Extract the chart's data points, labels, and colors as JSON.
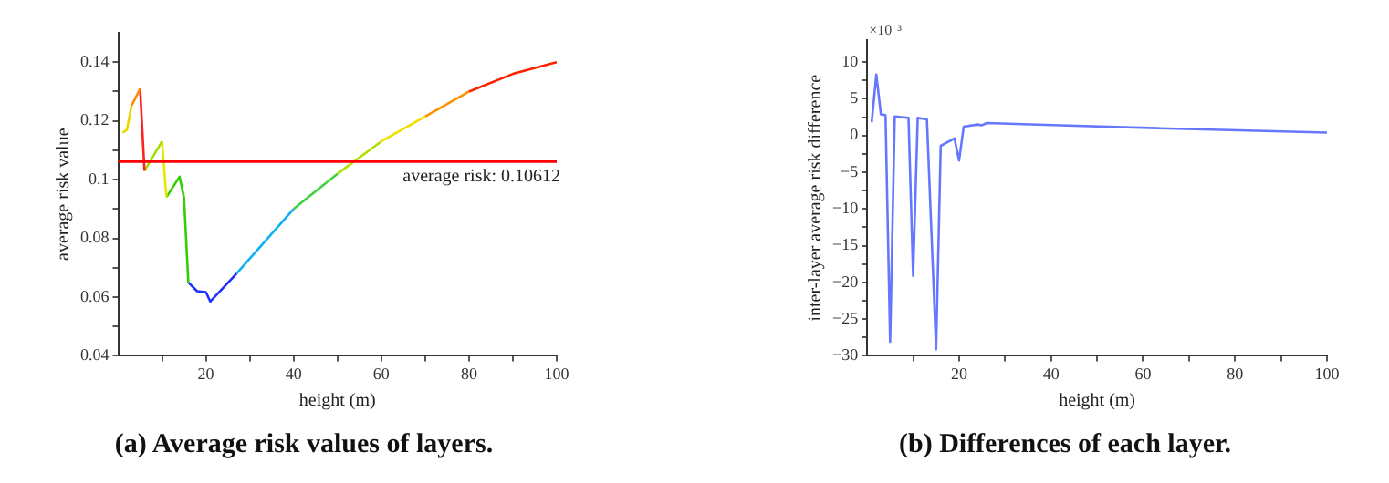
{
  "chart_data": [
    {
      "type": "line",
      "title": "(a) Average risk values of layers.",
      "xlabel": "height (m)",
      "ylabel": "average risk value",
      "series": [
        {
          "color": "#e8d800",
          "x": [
            1,
            2,
            3
          ],
          "values": [
            0.116,
            0.117,
            0.125
          ]
        },
        {
          "color": "#ff8800",
          "x": [
            3,
            5
          ],
          "values": [
            0.125,
            0.131
          ]
        },
        {
          "color": "#ff2020",
          "x": [
            5,
            6
          ],
          "values": [
            0.131,
            0.103
          ]
        },
        {
          "color": "#a0e000",
          "x": [
            6,
            10
          ],
          "values": [
            0.103,
            0.113
          ]
        },
        {
          "color": "#e8e800",
          "x": [
            10,
            11
          ],
          "values": [
            0.113,
            0.094
          ]
        },
        {
          "color": "#30d000",
          "x": [
            11,
            14,
            15,
            16
          ],
          "values": [
            0.094,
            0.101,
            0.094,
            0.065
          ]
        },
        {
          "color": "#2030ff",
          "x": [
            16,
            18,
            20,
            21,
            27
          ],
          "values": [
            0.065,
            0.062,
            0.0617,
            0.0585,
            0.068
          ]
        },
        {
          "color": "#10b0f0",
          "x": [
            27,
            40
          ],
          "values": [
            0.068,
            0.09
          ]
        },
        {
          "color": "#40d040",
          "x": [
            40,
            50
          ],
          "values": [
            0.09,
            0.102
          ]
        },
        {
          "color": "#b0e000",
          "x": [
            50,
            60
          ],
          "values": [
            0.102,
            0.113
          ]
        },
        {
          "color": "#f0e000",
          "x": [
            60,
            70
          ],
          "values": [
            0.113,
            0.1215
          ]
        },
        {
          "color": "#ff9000",
          "x": [
            70,
            80
          ],
          "values": [
            0.1215,
            0.13
          ]
        },
        {
          "color": "#ff2000",
          "x": [
            80,
            90,
            100
          ],
          "values": [
            0.13,
            0.136,
            0.14
          ]
        }
      ],
      "xlim": [
        0,
        100
      ],
      "xticks": [
        {
          "value": 10,
          "label": null
        },
        20,
        {
          "value": 30,
          "label": null
        },
        40,
        {
          "value": 50,
          "label": null
        },
        60,
        {
          "value": 70,
          "label": null
        },
        80,
        {
          "value": 90,
          "label": null
        },
        100
      ],
      "ylim": [
        0.04,
        0.15
      ],
      "yticks": [
        0.04,
        {
          "value": 0.05,
          "label": null
        },
        0.06,
        {
          "value": 0.07,
          "label": null
        },
        0.08,
        {
          "value": 0.09,
          "label": null
        },
        0.1,
        {
          "value": 0.11,
          "label": null
        },
        0.12,
        {
          "value": 0.13,
          "label": null
        },
        0.14
      ],
      "ref_lines": [
        {
          "axis": "y",
          "value": 0.10612,
          "label": "average risk: 0.10612",
          "color": "#ff0000"
        }
      ],
      "grid": false,
      "legend": false,
      "marker": "none",
      "line_style": "solid"
    },
    {
      "type": "line",
      "title": "(b) Differences of each layer.",
      "xlabel": "height (m)",
      "ylabel": "inter-layer average risk difference",
      "annotations": [
        "×10⁻³"
      ],
      "x": [
        1,
        2,
        3,
        4,
        5,
        6,
        9,
        10,
        11,
        13,
        15,
        16,
        19,
        20,
        21,
        24,
        25,
        26,
        42,
        63,
        100
      ],
      "series": [
        {
          "color": "#6677ff",
          "values": [
            1.8,
            8.3,
            2.9,
            2.8,
            -28.1,
            2.6,
            2.4,
            -19.1,
            2.4,
            2.2,
            -29.1,
            -1.4,
            -0.4,
            -3.4,
            1.2,
            1.5,
            1.4,
            1.7,
            1.4,
            1.0,
            0.4
          ]
        }
      ],
      "xlim": [
        0,
        100
      ],
      "xticks": [
        {
          "value": 10,
          "label": null
        },
        20,
        {
          "value": 30,
          "label": null
        },
        40,
        {
          "value": 50,
          "label": null
        },
        60,
        {
          "value": 70,
          "label": null
        },
        80,
        {
          "value": 90,
          "label": null
        },
        100
      ],
      "ylim": [
        -30,
        13
      ],
      "yticks": [
        -30,
        {
          "value": -27.5,
          "label": null
        },
        -25,
        {
          "value": -22.5,
          "label": null
        },
        -20,
        {
          "value": -17.5,
          "label": null
        },
        -15,
        {
          "value": -12.5,
          "label": null
        },
        -10,
        {
          "value": -7.5,
          "label": null
        },
        -5,
        {
          "value": -2.5,
          "label": null
        },
        0,
        {
          "value": 2.5,
          "label": null
        },
        5,
        {
          "value": 7.5,
          "label": null
        },
        10
      ],
      "grid": false,
      "legend": false,
      "marker": "none",
      "line_style": "solid"
    }
  ]
}
